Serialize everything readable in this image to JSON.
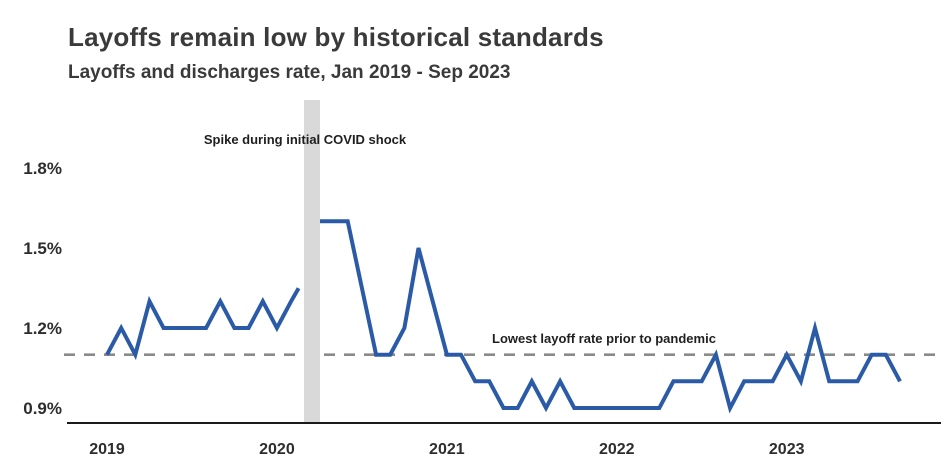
{
  "header": {
    "title": "Layoffs remain low by historical standards",
    "subtitle": "Layoffs and discharges rate, Jan 2019 - Sep 2023"
  },
  "chart_data": {
    "type": "line",
    "title": "Layoffs remain low by historical standards",
    "subtitle": "Layoffs and discharges rate, Jan 2019 - Sep 2023",
    "unit": "%",
    "grid": false,
    "legend": "none",
    "x": [
      "Jan 2019",
      "Feb 2019",
      "Mar 2019",
      "Apr 2019",
      "May 2019",
      "Jun 2019",
      "Jul 2019",
      "Aug 2019",
      "Sep 2019",
      "Oct 2019",
      "Nov 2019",
      "Dec 2019",
      "Jan 2020",
      "Feb 2020",
      "Mar 2020",
      "Apr 2020",
      "May 2020",
      "Jun 2020",
      "Jul 2020",
      "Aug 2020",
      "Sep 2020",
      "Oct 2020",
      "Nov 2020",
      "Dec 2020",
      "Jan 2021",
      "Feb 2021",
      "Mar 2021",
      "Apr 2021",
      "May 2021",
      "Jun 2021",
      "Jul 2021",
      "Aug 2021",
      "Sep 2021",
      "Oct 2021",
      "Nov 2021",
      "Dec 2021",
      "Jan 2022",
      "Feb 2022",
      "Mar 2022",
      "Apr 2022",
      "May 2022",
      "Jun 2022",
      "Jul 2022",
      "Aug 2022",
      "Sep 2022",
      "Oct 2022",
      "Nov 2022",
      "Dec 2022",
      "Jan 2023",
      "Feb 2023",
      "Mar 2023",
      "Apr 2023",
      "May 2023",
      "Jun 2023",
      "Jul 2023",
      "Aug 2023",
      "Sep 2023"
    ],
    "series": [
      {
        "name": "Layoffs and discharges rate (%)",
        "values": [
          1.1,
          1.2,
          1.1,
          1.3,
          1.2,
          1.2,
          1.2,
          1.2,
          1.3,
          1.2,
          1.2,
          1.3,
          1.2,
          1.3,
          null,
          null,
          1.6,
          1.6,
          1.35,
          1.1,
          1.1,
          1.2,
          1.5,
          1.3,
          1.1,
          1.1,
          1.0,
          1.0,
          0.9,
          0.9,
          1.0,
          0.9,
          1.0,
          0.9,
          0.9,
          0.9,
          0.9,
          0.9,
          0.9,
          0.9,
          1.0,
          1.0,
          1.0,
          1.1,
          0.9,
          1.0,
          1.0,
          1.0,
          1.1,
          1.0,
          1.2,
          1.0,
          1.0,
          1.0,
          1.1,
          1.1,
          1.0
        ]
      }
    ],
    "covid_band": {
      "hidden_months": [
        "Mar 2020",
        "Apr 2020"
      ],
      "offscale_spike": true
    },
    "reference_line": {
      "value": 1.1,
      "style": "dashed"
    },
    "annotations": [
      {
        "id": "covid",
        "text": "Spike during initial COVID shock"
      },
      {
        "id": "lowest",
        "text": "Lowest layoff rate prior to pandemic"
      }
    ],
    "y_ticks": [
      {
        "label": "1.8%",
        "value": 1.8
      },
      {
        "label": "1.5%",
        "value": 1.5
      },
      {
        "label": "1.2%",
        "value": 1.2
      },
      {
        "label": "0.9%",
        "value": 0.9
      }
    ],
    "x_ticks": [
      {
        "label": "2019",
        "index": 0
      },
      {
        "label": "2020",
        "index": 12
      },
      {
        "label": "2021",
        "index": 24
      },
      {
        "label": "2022",
        "index": 36
      },
      {
        "label": "2023",
        "index": 48
      }
    ],
    "ylim": [
      0.84,
      2.05
    ],
    "colors": {
      "line": "#2b5ba7",
      "band": "#d9d9d9",
      "dashed": "#8a8a8a",
      "axis": "#1a1a1a",
      "text": "#3a3a3a"
    }
  }
}
